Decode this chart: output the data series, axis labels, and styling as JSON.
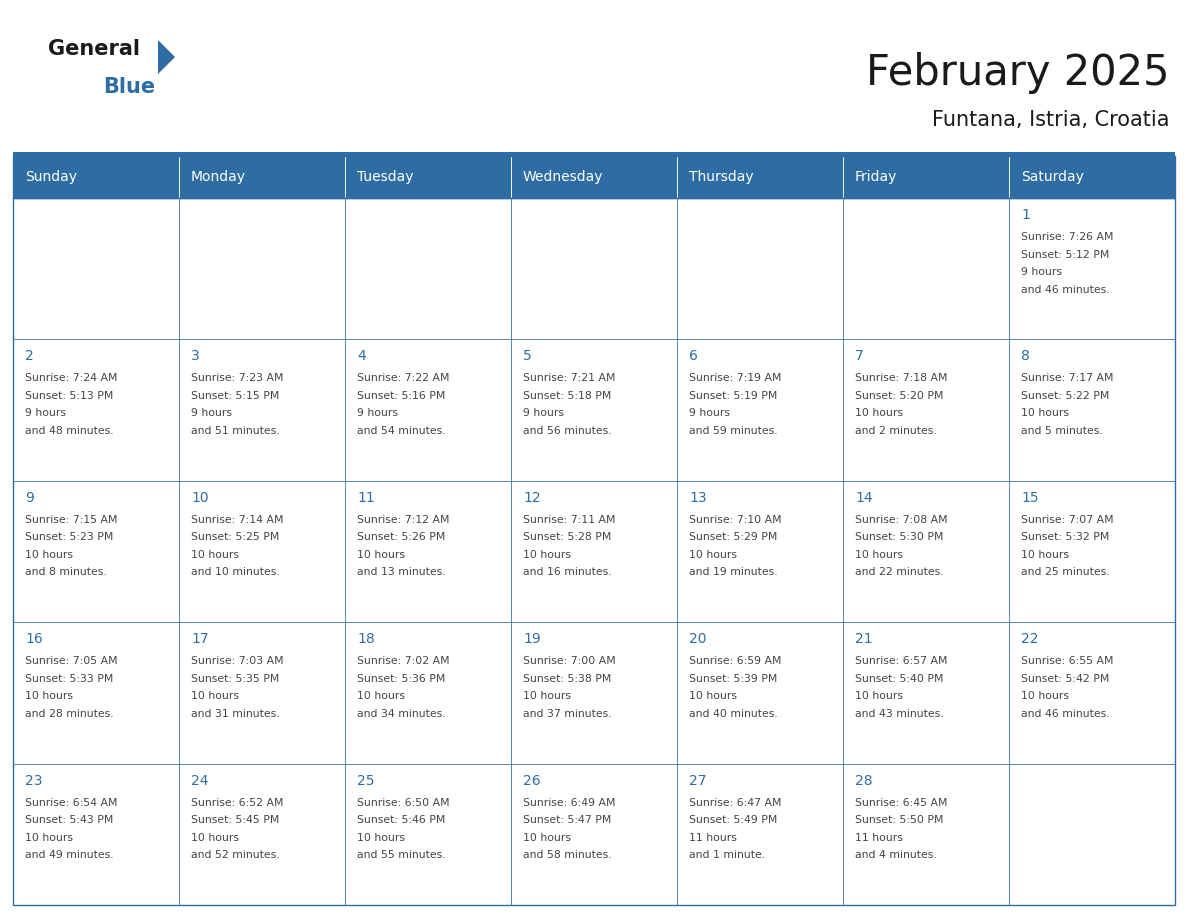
{
  "title": "February 2025",
  "subtitle": "Funtana, Istria, Croatia",
  "days_of_week": [
    "Sunday",
    "Monday",
    "Tuesday",
    "Wednesday",
    "Thursday",
    "Friday",
    "Saturday"
  ],
  "header_bg": "#2E6DA4",
  "header_text_color": "#FFFFFF",
  "cell_bg": "#FFFFFF",
  "border_color": "#2E6DA4",
  "text_color": "#444444",
  "day_num_color": "#2E6DA4",
  "logo_dark_color": "#1a1a1a",
  "logo_blue_color": "#2E6DA4",
  "title_color": "#1a1a1a",
  "calendar": [
    [
      null,
      null,
      null,
      null,
      null,
      null,
      {
        "day": 1,
        "sunrise": "7:26 AM",
        "sunset": "5:12 PM",
        "daylight": "9 hours\nand 46 minutes."
      }
    ],
    [
      {
        "day": 2,
        "sunrise": "7:24 AM",
        "sunset": "5:13 PM",
        "daylight": "9 hours\nand 48 minutes."
      },
      {
        "day": 3,
        "sunrise": "7:23 AM",
        "sunset": "5:15 PM",
        "daylight": "9 hours\nand 51 minutes."
      },
      {
        "day": 4,
        "sunrise": "7:22 AM",
        "sunset": "5:16 PM",
        "daylight": "9 hours\nand 54 minutes."
      },
      {
        "day": 5,
        "sunrise": "7:21 AM",
        "sunset": "5:18 PM",
        "daylight": "9 hours\nand 56 minutes."
      },
      {
        "day": 6,
        "sunrise": "7:19 AM",
        "sunset": "5:19 PM",
        "daylight": "9 hours\nand 59 minutes."
      },
      {
        "day": 7,
        "sunrise": "7:18 AM",
        "sunset": "5:20 PM",
        "daylight": "10 hours\nand 2 minutes."
      },
      {
        "day": 8,
        "sunrise": "7:17 AM",
        "sunset": "5:22 PM",
        "daylight": "10 hours\nand 5 minutes."
      }
    ],
    [
      {
        "day": 9,
        "sunrise": "7:15 AM",
        "sunset": "5:23 PM",
        "daylight": "10 hours\nand 8 minutes."
      },
      {
        "day": 10,
        "sunrise": "7:14 AM",
        "sunset": "5:25 PM",
        "daylight": "10 hours\nand 10 minutes."
      },
      {
        "day": 11,
        "sunrise": "7:12 AM",
        "sunset": "5:26 PM",
        "daylight": "10 hours\nand 13 minutes."
      },
      {
        "day": 12,
        "sunrise": "7:11 AM",
        "sunset": "5:28 PM",
        "daylight": "10 hours\nand 16 minutes."
      },
      {
        "day": 13,
        "sunrise": "7:10 AM",
        "sunset": "5:29 PM",
        "daylight": "10 hours\nand 19 minutes."
      },
      {
        "day": 14,
        "sunrise": "7:08 AM",
        "sunset": "5:30 PM",
        "daylight": "10 hours\nand 22 minutes."
      },
      {
        "day": 15,
        "sunrise": "7:07 AM",
        "sunset": "5:32 PM",
        "daylight": "10 hours\nand 25 minutes."
      }
    ],
    [
      {
        "day": 16,
        "sunrise": "7:05 AM",
        "sunset": "5:33 PM",
        "daylight": "10 hours\nand 28 minutes."
      },
      {
        "day": 17,
        "sunrise": "7:03 AM",
        "sunset": "5:35 PM",
        "daylight": "10 hours\nand 31 minutes."
      },
      {
        "day": 18,
        "sunrise": "7:02 AM",
        "sunset": "5:36 PM",
        "daylight": "10 hours\nand 34 minutes."
      },
      {
        "day": 19,
        "sunrise": "7:00 AM",
        "sunset": "5:38 PM",
        "daylight": "10 hours\nand 37 minutes."
      },
      {
        "day": 20,
        "sunrise": "6:59 AM",
        "sunset": "5:39 PM",
        "daylight": "10 hours\nand 40 minutes."
      },
      {
        "day": 21,
        "sunrise": "6:57 AM",
        "sunset": "5:40 PM",
        "daylight": "10 hours\nand 43 minutes."
      },
      {
        "day": 22,
        "sunrise": "6:55 AM",
        "sunset": "5:42 PM",
        "daylight": "10 hours\nand 46 minutes."
      }
    ],
    [
      {
        "day": 23,
        "sunrise": "6:54 AM",
        "sunset": "5:43 PM",
        "daylight": "10 hours\nand 49 minutes."
      },
      {
        "day": 24,
        "sunrise": "6:52 AM",
        "sunset": "5:45 PM",
        "daylight": "10 hours\nand 52 minutes."
      },
      {
        "day": 25,
        "sunrise": "6:50 AM",
        "sunset": "5:46 PM",
        "daylight": "10 hours\nand 55 minutes."
      },
      {
        "day": 26,
        "sunrise": "6:49 AM",
        "sunset": "5:47 PM",
        "daylight": "10 hours\nand 58 minutes."
      },
      {
        "day": 27,
        "sunrise": "6:47 AM",
        "sunset": "5:49 PM",
        "daylight": "11 hours\nand 1 minute."
      },
      {
        "day": 28,
        "sunrise": "6:45 AM",
        "sunset": "5:50 PM",
        "daylight": "11 hours\nand 4 minutes."
      },
      null
    ]
  ],
  "fig_width": 11.88,
  "fig_height": 9.18,
  "dpi": 100
}
